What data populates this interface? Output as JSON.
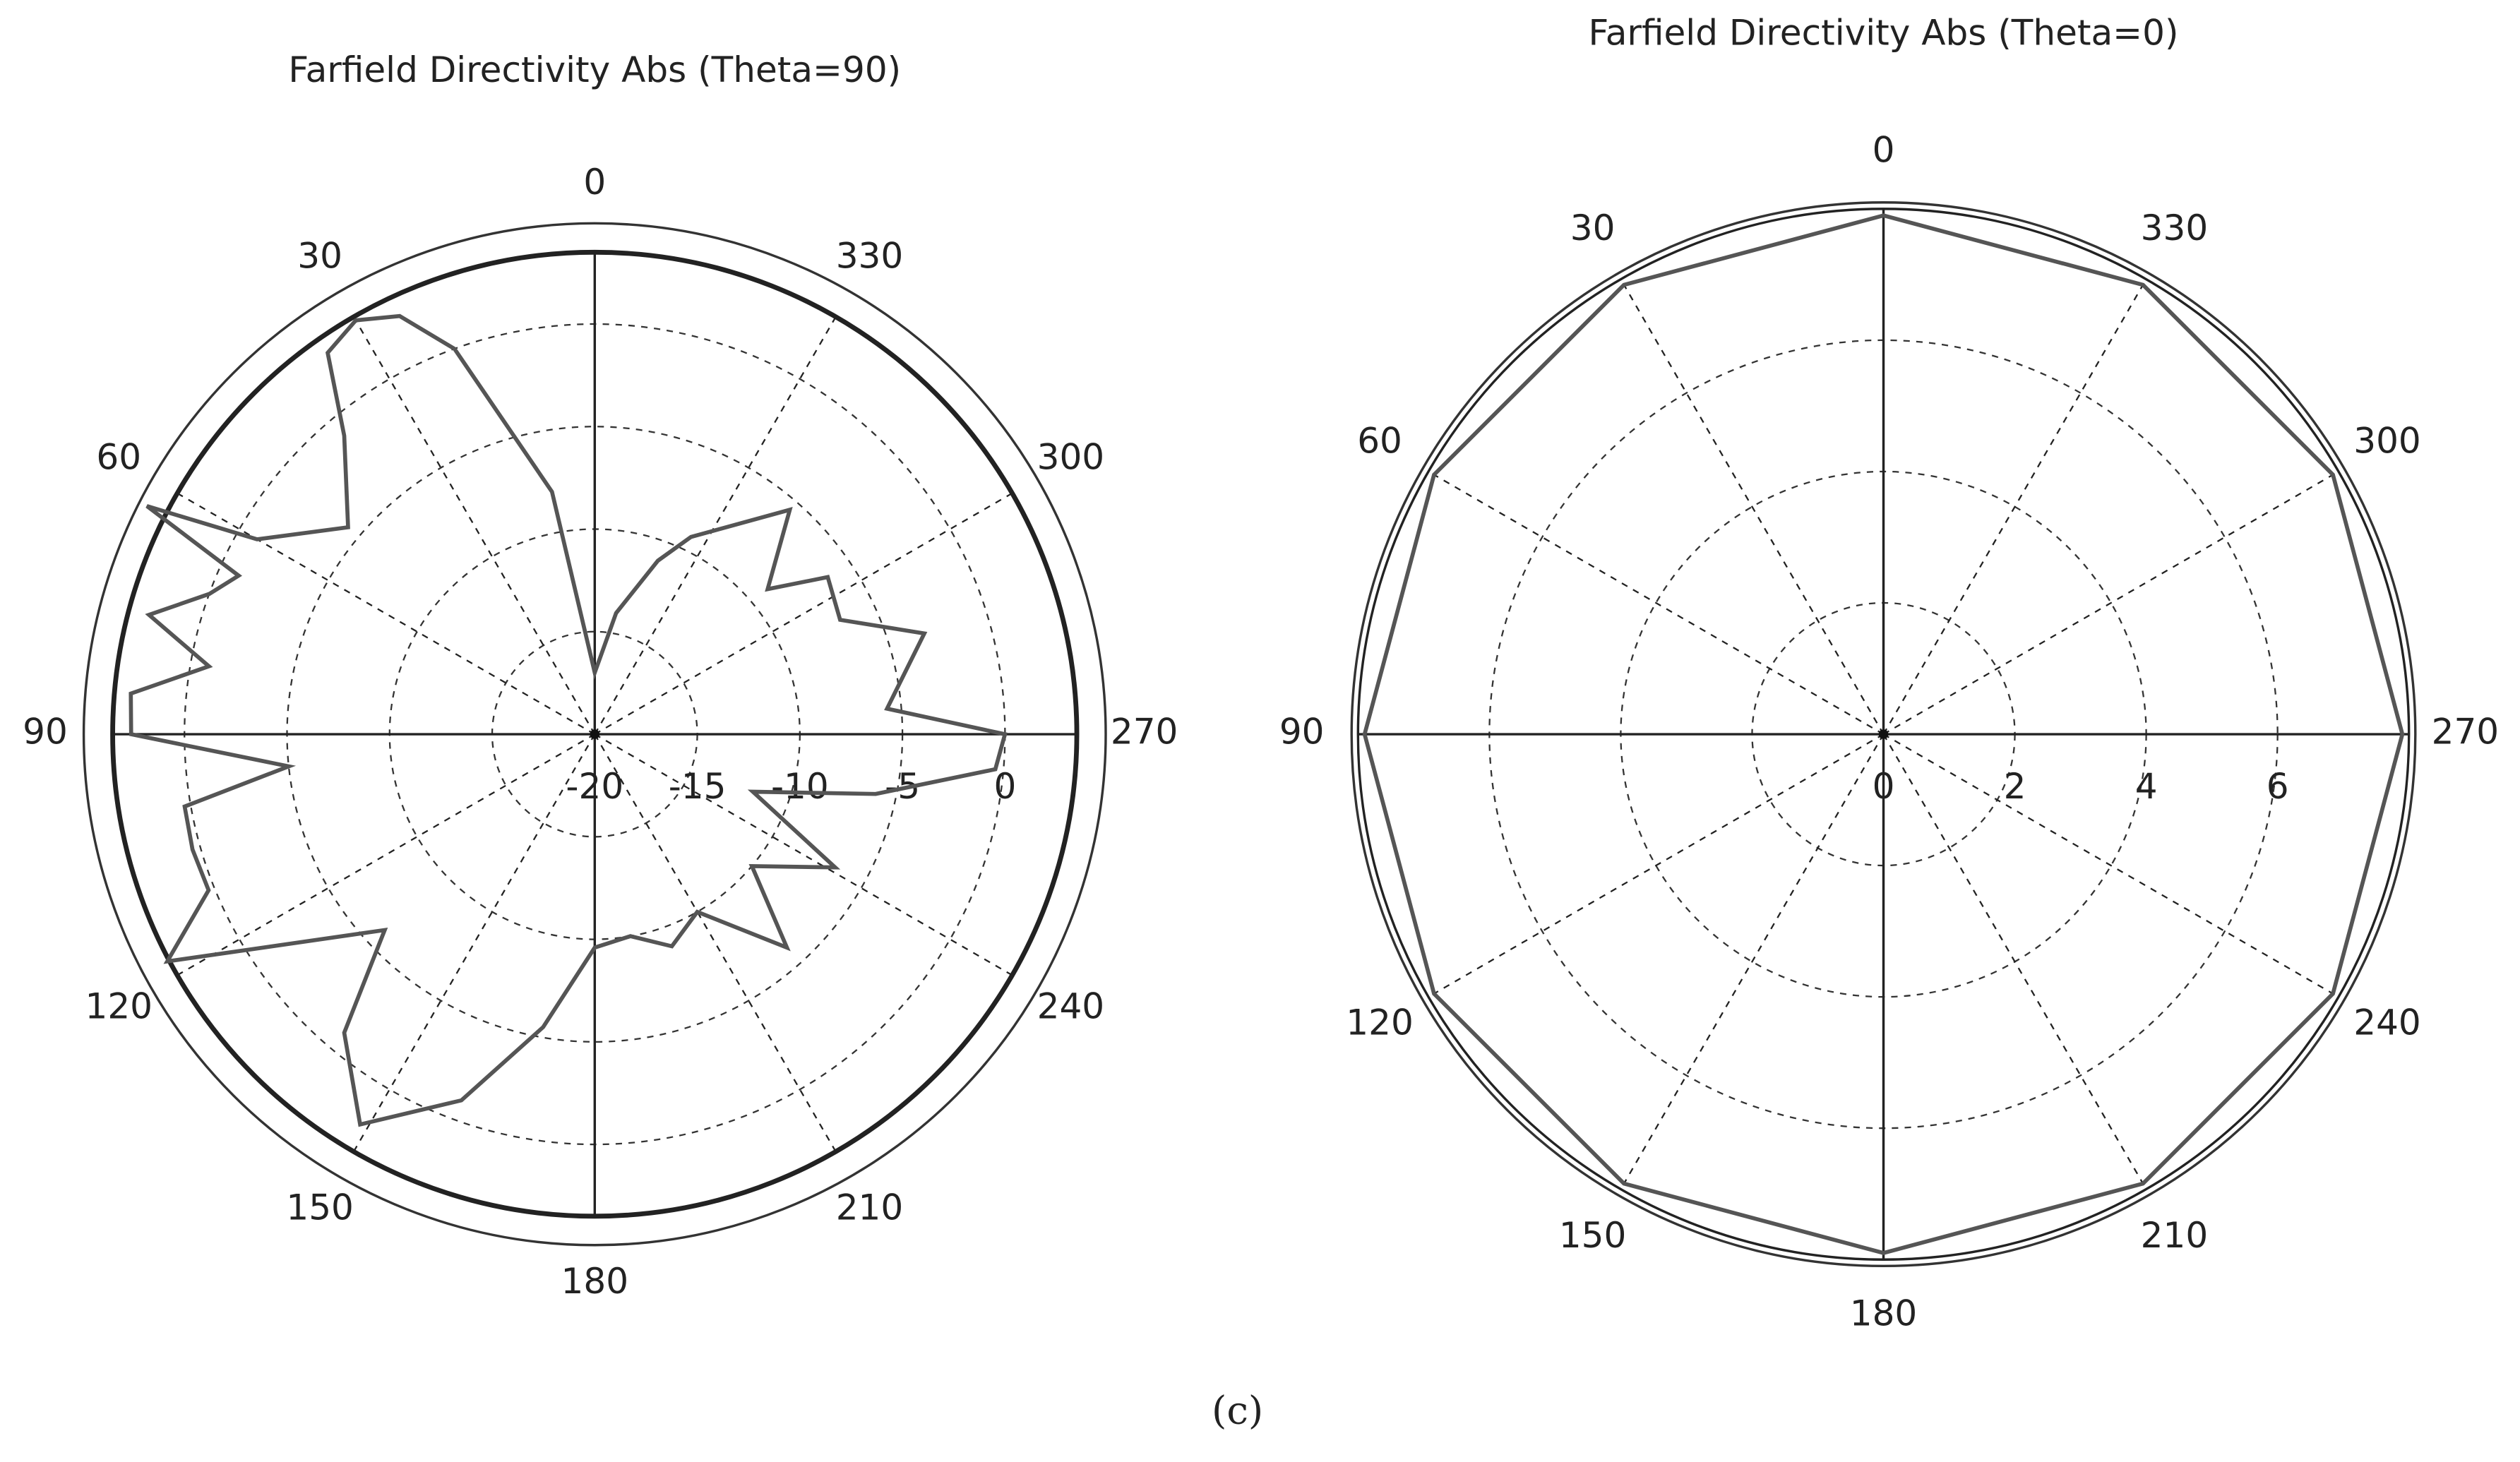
{
  "chart_data": [
    {
      "type": "polar",
      "title": "Farfield Directivity Abs (Theta=90)",
      "color": "#555555",
      "theta": [
        0,
        10,
        20,
        25,
        30,
        35,
        40,
        50,
        60,
        63,
        66,
        70,
        75,
        80,
        85,
        90,
        96,
        100,
        106,
        112,
        118,
        133,
        140,
        149,
        160,
        170,
        180,
        190,
        200,
        210,
        222,
        230,
        241,
        250,
        258,
        265,
        270,
        275,
        287,
        295,
        304,
        310,
        319,
        334,
        340,
        350
      ],
      "values": [
        -17,
        -8,
        0,
        2.5,
        3.3,
        2.7,
        -1,
        -4.3,
        -1,
        4.5,
        -1,
        0,
        2.5,
        -0.9,
        2.7,
        2.6,
        -5,
        0.3,
        0.4,
        0.3,
        3.6,
        -6,
        -1,
        2.2,
        -1,
        -5.5,
        -9.6,
        -10,
        -9,
        -10,
        -6,
        -10,
        -6.6,
        -11.8,
        -6,
        -0.4,
        0,
        -5.7,
        -3.2,
        -6.8,
        -6.3,
        -9,
        -5.5,
        -9.3,
        -11,
        -14
      ],
      "rlim": [
        -20,
        3.5
      ],
      "rticks": [
        -20,
        -15,
        -10,
        -5,
        0
      ],
      "thetaticks": [
        0,
        30,
        60,
        90,
        120,
        150,
        180,
        210,
        240,
        270,
        300,
        330
      ]
    },
    {
      "type": "polar",
      "title": "Farfield Directivity Abs (Theta=0)",
      "color": "#555555",
      "theta": [
        0,
        30,
        60,
        90,
        120,
        150,
        180,
        210,
        240,
        270,
        300,
        330
      ],
      "values": [
        7.9,
        7.9,
        7.9,
        7.9,
        7.9,
        7.9,
        7.9,
        7.9,
        7.9,
        7.9,
        7.9,
        7.9
      ],
      "rlim": [
        0,
        8
      ],
      "rticks": [
        0,
        2,
        4,
        6
      ],
      "thetaticks": [
        0,
        30,
        60,
        90,
        120,
        150,
        180,
        210,
        240,
        270,
        300,
        330
      ]
    }
  ],
  "caption": "(c)"
}
